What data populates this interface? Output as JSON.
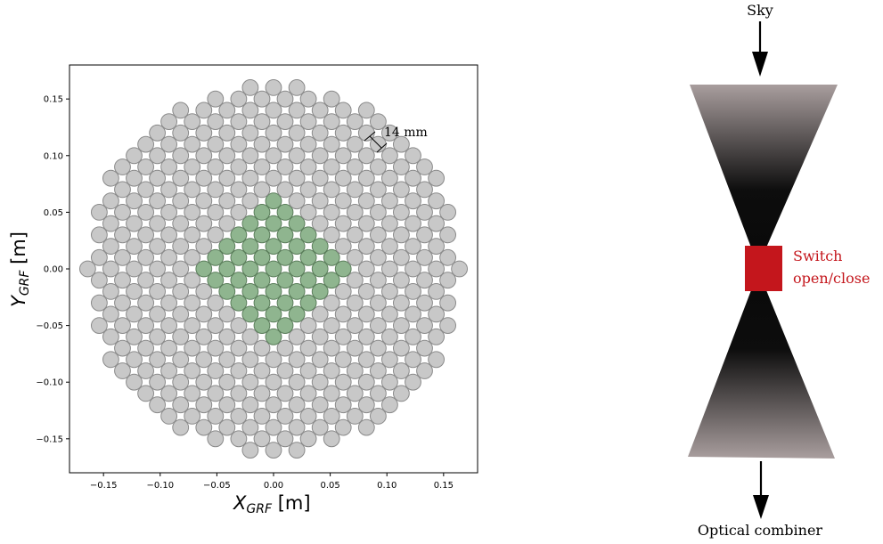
{
  "chart_data": {
    "type": "scatter",
    "title": "",
    "xlabel": "X",
    "xlabel_sub": "GRF",
    "xlabel_unit": "[m]",
    "ylabel": "Y",
    "ylabel_sub": "GRF",
    "ylabel_unit": "[m]",
    "xlim": [
      -0.18,
      0.18
    ],
    "ylim": [
      -0.18,
      0.18
    ],
    "xticks": [
      -0.15,
      -0.1,
      -0.05,
      0.0,
      0.05,
      0.1,
      0.15
    ],
    "yticks": [
      -0.15,
      -0.1,
      -0.05,
      0.0,
      0.05,
      0.1,
      0.15
    ],
    "xtick_labels": [
      "−0.15",
      "−0.10",
      "−0.05",
      "0.00",
      "0.05",
      "0.10",
      "0.15"
    ],
    "ytick_labels": [
      "−0.15",
      "−0.10",
      "−0.05",
      "0.00",
      "0.05",
      "0.10",
      "0.15"
    ],
    "grid": false,
    "pitch_m": 0.0205,
    "row_spacing_m": 0.01,
    "circle_radius_m": 0.007,
    "outer_radius_m": 0.165,
    "active_radius_m": 0.072,
    "annotation": "14 mm",
    "colors": {
      "inactive_fill": "#c8c8c8",
      "inactive_stroke": "#8a8a8a",
      "active_fill": "#8fb58f",
      "active_stroke": "#5a7d5a"
    }
  },
  "schematic": {
    "top_label": "Sky",
    "switch_label_line1": "Switch",
    "switch_label_line2": "open/close",
    "bottom_label": "Optical combiner",
    "switch_color": "#c4161c",
    "switch_text_color": "#c4161c"
  }
}
